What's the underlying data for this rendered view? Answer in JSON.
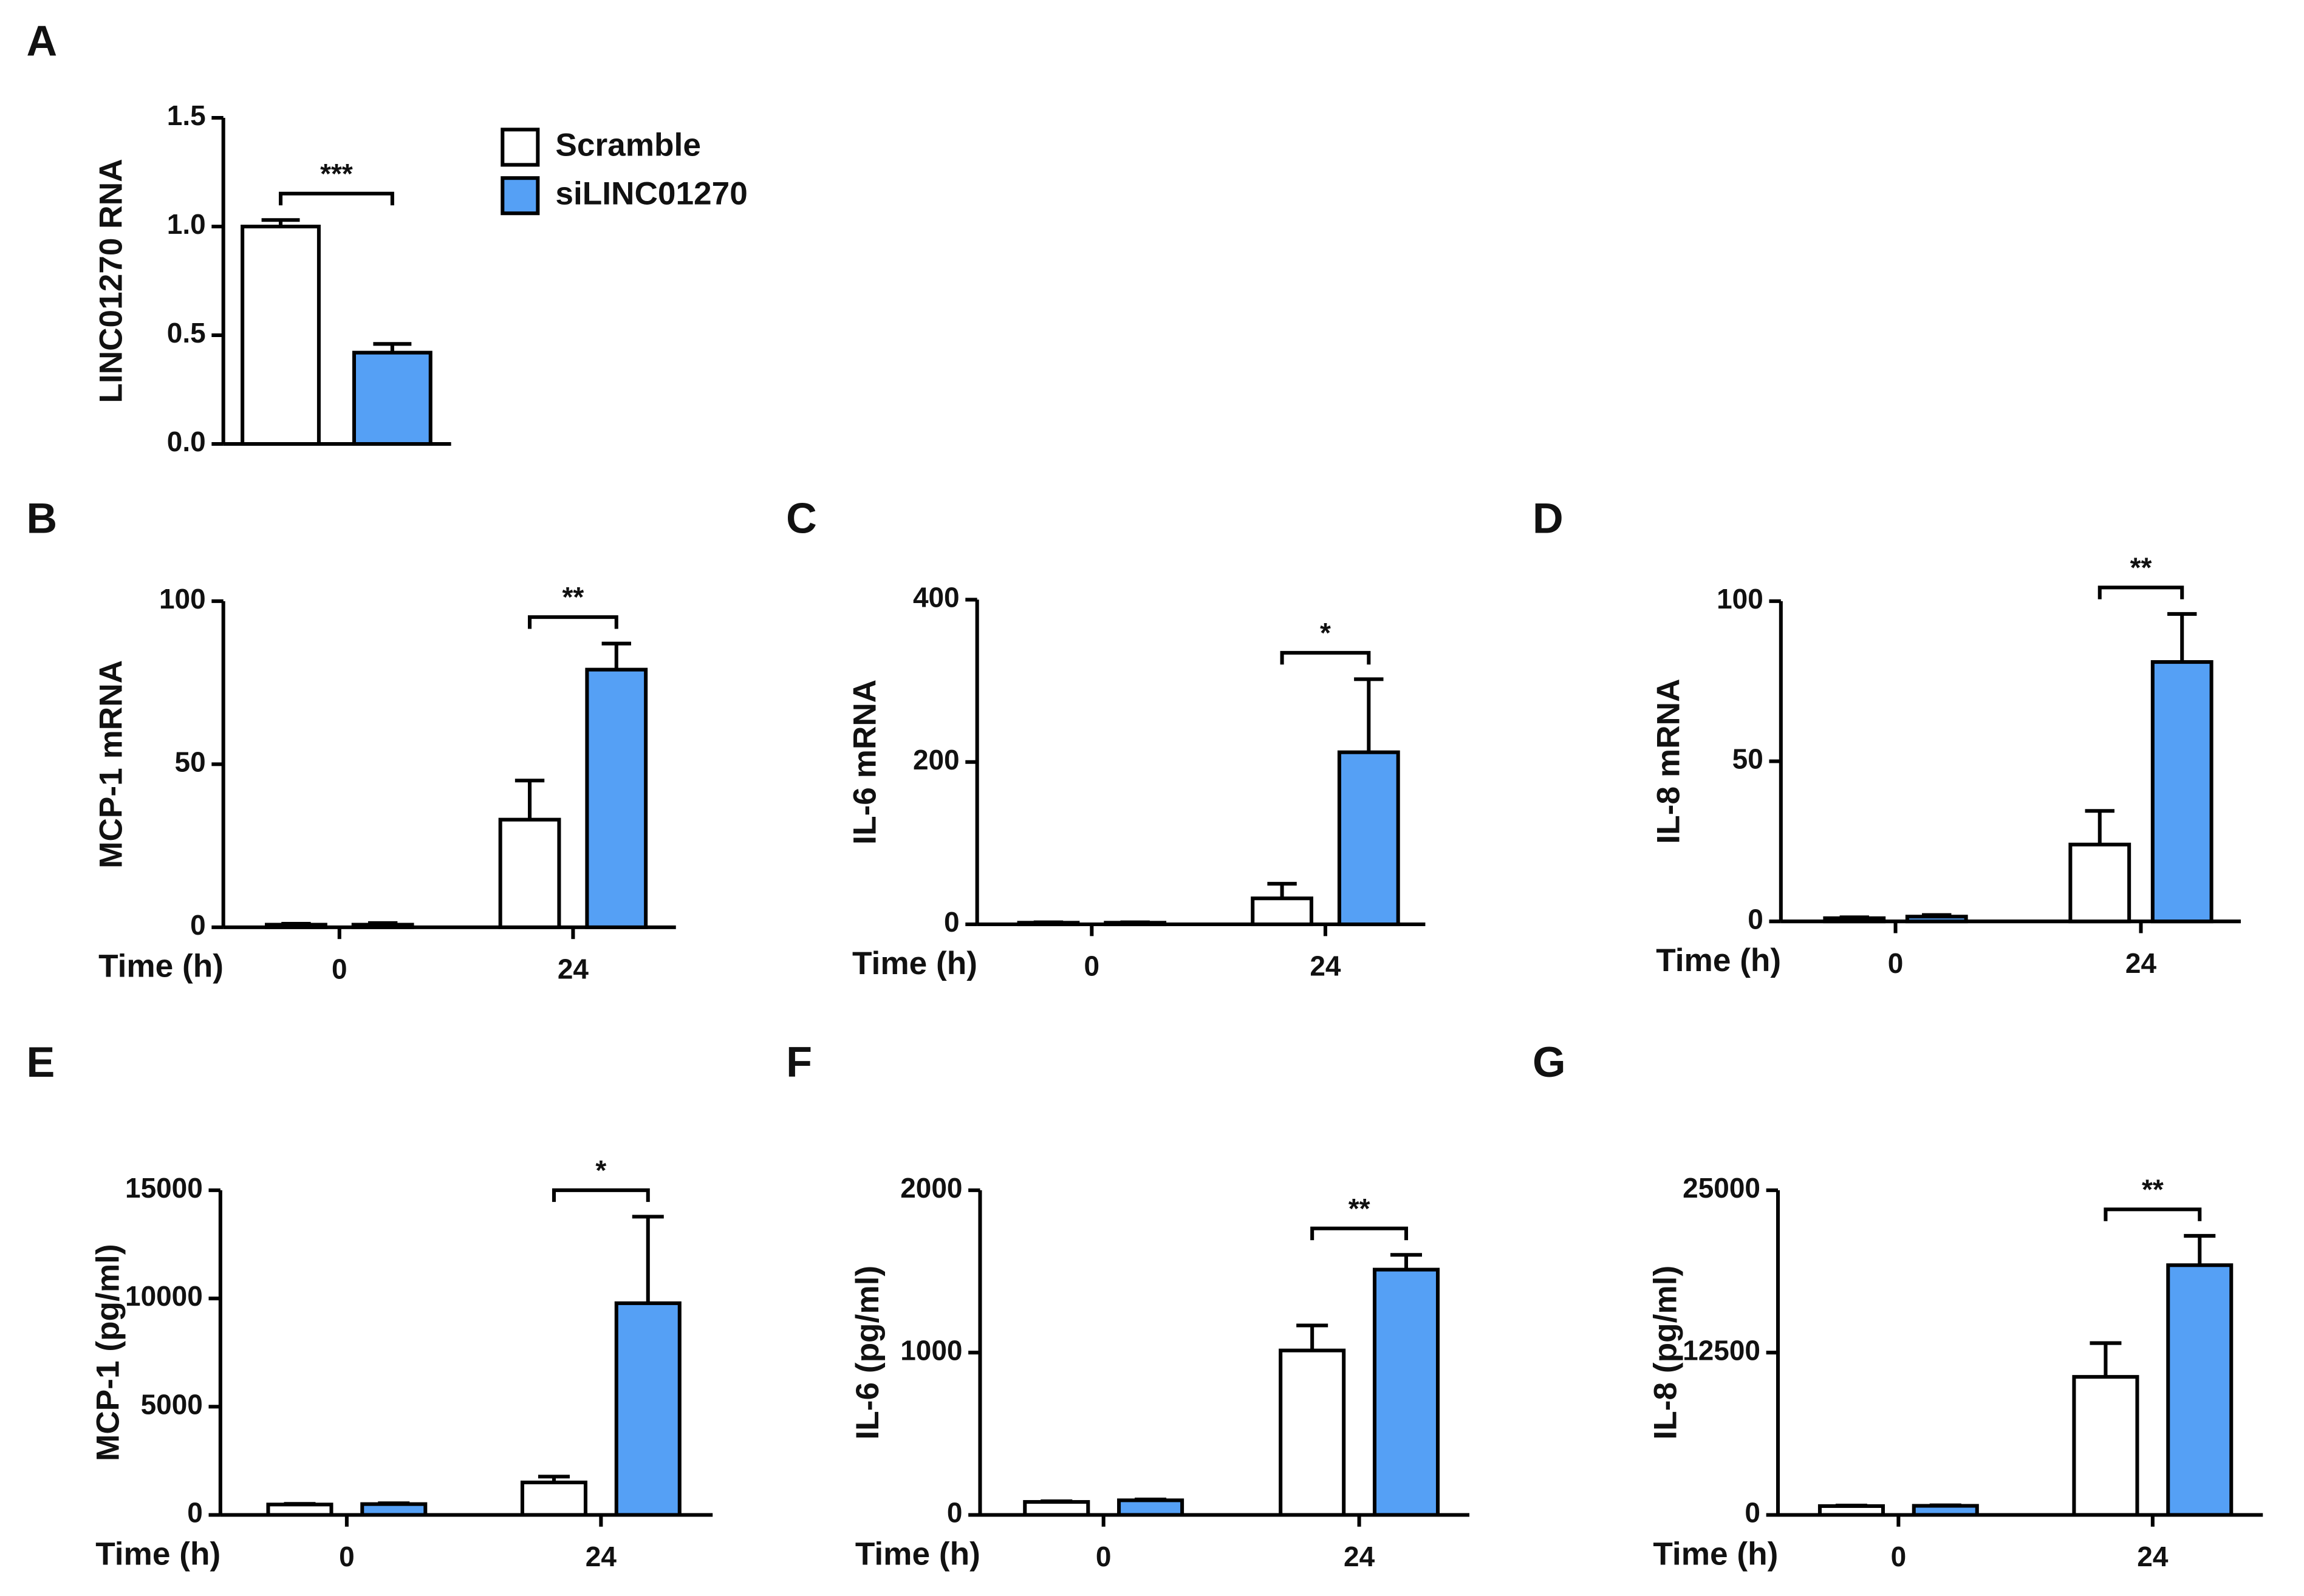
{
  "chart_data": [
    {
      "type": "bar",
      "panel": "A",
      "ylabel": "LINC01270 RNA",
      "categories": [
        null
      ],
      "ylim": [
        0,
        1.5
      ],
      "yticks": [
        {
          "value": 0,
          "label": "0.0"
        },
        0.5,
        {
          "value": 1,
          "label": "1.0"
        },
        1.5
      ],
      "series": [
        {
          "name": "Scramble",
          "color": "#ffffff",
          "values": [
            1.0
          ],
          "errors": [
            0.03
          ]
        },
        {
          "name": "siLINC01270",
          "color": "#55a0f5",
          "values": [
            0.42
          ],
          "errors": [
            0.04
          ]
        }
      ],
      "annotations": [
        "***"
      ],
      "legend": "right"
    },
    {
      "type": "bar",
      "panel": "B",
      "ylabel": "MCP-1 mRNA",
      "xlabel": "Time (h)",
      "categories": [
        "0",
        "24"
      ],
      "ylim": [
        0,
        100
      ],
      "yticks": [
        0,
        50,
        100
      ],
      "series": [
        {
          "color": "#ffffff",
          "values": [
            0.8,
            33
          ],
          "errors": [
            0.3,
            12
          ]
        },
        {
          "color": "#55a0f5",
          "values": [
            0.8,
            79
          ],
          "errors": [
            0.5,
            8
          ]
        }
      ],
      "annotations": [
        "**"
      ]
    },
    {
      "type": "bar",
      "panel": "C",
      "ylabel": "IL-6 mRNA",
      "xlabel": "Time (h)",
      "categories": [
        "0",
        "24"
      ],
      "ylim": [
        0,
        400
      ],
      "yticks": [
        0,
        200,
        400
      ],
      "series": [
        {
          "color": "#ffffff",
          "values": [
            2,
            32
          ],
          "errors": [
            0.5,
            18
          ]
        },
        {
          "color": "#55a0f5",
          "values": [
            2,
            212
          ],
          "errors": [
            0.5,
            90
          ]
        }
      ],
      "annotations": [
        "*"
      ]
    },
    {
      "type": "bar",
      "panel": "D",
      "ylabel": "IL-8 mRNA",
      "xlabel": "Time (h)",
      "categories": [
        "0",
        "24"
      ],
      "ylim": [
        0,
        100
      ],
      "yticks": [
        0,
        50,
        100
      ],
      "series": [
        {
          "color": "#ffffff",
          "values": [
            1,
            24
          ],
          "errors": [
            0.3,
            10.5
          ]
        },
        {
          "color": "#55a0f5",
          "values": [
            1.5,
            81
          ],
          "errors": [
            0.5,
            15
          ]
        }
      ],
      "annotations": [
        "**"
      ]
    },
    {
      "type": "bar",
      "panel": "E",
      "ylabel": "MCP-1 (pg/ml)",
      "xlabel": "Time (h)",
      "categories": [
        "0",
        "24"
      ],
      "ylim": [
        0,
        15000
      ],
      "yticks": [
        0,
        5000,
        10000,
        15000
      ],
      "series": [
        {
          "color": "#ffffff",
          "values": [
            480,
            1500
          ],
          "errors": [
            30,
            270
          ]
        },
        {
          "color": "#55a0f5",
          "values": [
            500,
            9780
          ],
          "errors": [
            40,
            4000
          ]
        }
      ],
      "annotations": [
        "*"
      ]
    },
    {
      "type": "bar",
      "panel": "F",
      "ylabel": "IL-6 (pg/ml)",
      "xlabel": "Time (h)",
      "categories": [
        "0",
        "24"
      ],
      "ylim": [
        0,
        2000
      ],
      "yticks": [
        0,
        1000,
        2000
      ],
      "series": [
        {
          "color": "#ffffff",
          "values": [
            80,
            1013
          ],
          "errors": [
            4,
            154
          ]
        },
        {
          "color": "#55a0f5",
          "values": [
            90,
            1511
          ],
          "errors": [
            5,
            91
          ]
        }
      ],
      "annotations": [
        "**"
      ]
    },
    {
      "type": "bar",
      "panel": "G",
      "ylabel": "IL-8 (pg/ml)",
      "xlabel": "Time (h)",
      "categories": [
        "0",
        "24"
      ],
      "ylim": [
        0,
        25000
      ],
      "yticks": [
        0,
        12500,
        25000
      ],
      "series": [
        {
          "color": "#ffffff",
          "values": [
            680,
            10630
          ],
          "errors": [
            40,
            2600
          ]
        },
        {
          "color": "#55a0f5",
          "values": [
            700,
            19230
          ],
          "errors": [
            40,
            2260
          ]
        }
      ],
      "annotations": [
        "**"
      ]
    }
  ]
}
